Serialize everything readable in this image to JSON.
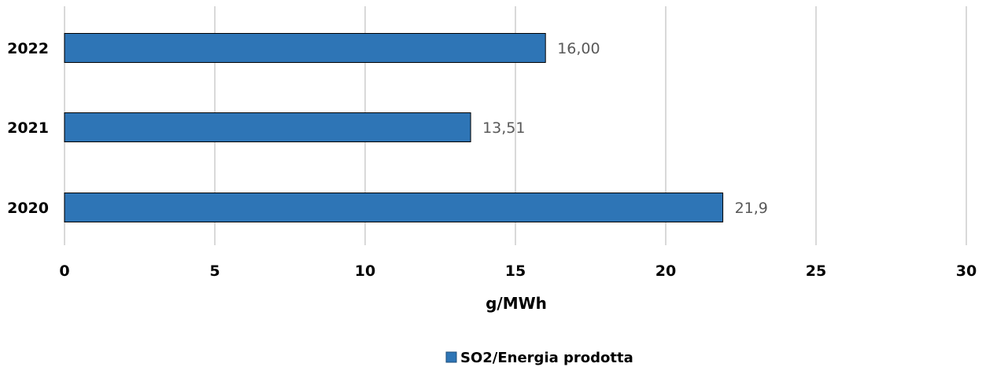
{
  "chart_data": {
    "type": "bar",
    "orientation": "horizontal",
    "title": "",
    "categories": [
      "2022",
      "2021",
      "2020"
    ],
    "series": [
      {
        "name": "SO2/Energia prodotta",
        "values": [
          16.0,
          13.51,
          21.9
        ],
        "labels": [
          "16,00",
          "13,51",
          "21,9"
        ]
      }
    ],
    "xlabel": "g/MWh",
    "ylabel": "",
    "xlim": [
      0,
      30
    ],
    "xticks": [
      0,
      5,
      10,
      15,
      20,
      25,
      30
    ],
    "grid": "vertical",
    "legend_position": "bottom",
    "colors": {
      "bar": "#2e75b6",
      "gridline": "#d9d9d9",
      "data_label": "#595959"
    }
  }
}
